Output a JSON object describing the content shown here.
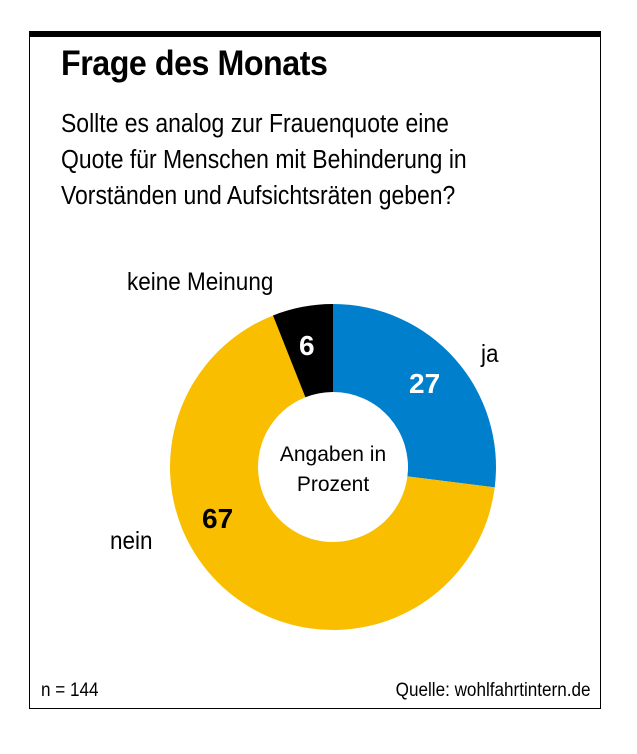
{
  "header": {
    "title": "Frage des Monats",
    "question": "Sollte es analog zur Frauenquote eine\nQuote für Menschen mit Behinderung in\nVorständen und Aufsichtsräten geben?"
  },
  "chart_data": {
    "type": "pie",
    "variant": "donut",
    "title": "Frage des Monats",
    "center_label": "Angaben in\nProzent",
    "unit": "%",
    "start": "12 o'clock",
    "direction": "clockwise",
    "slices": [
      {
        "name": "ja",
        "value": 27,
        "color": "#0080CC",
        "value_color": "#FFFFFF"
      },
      {
        "name": "nein",
        "value": 67,
        "color": "#F9BE00",
        "value_color": "#000000"
      },
      {
        "name": "keine Meinung",
        "value": 6,
        "color": "#000000",
        "value_color": "#FFFFFF"
      }
    ]
  },
  "footer": {
    "sample_size": "n = 144",
    "source": "Quelle: wohlfahrtintern.de"
  }
}
